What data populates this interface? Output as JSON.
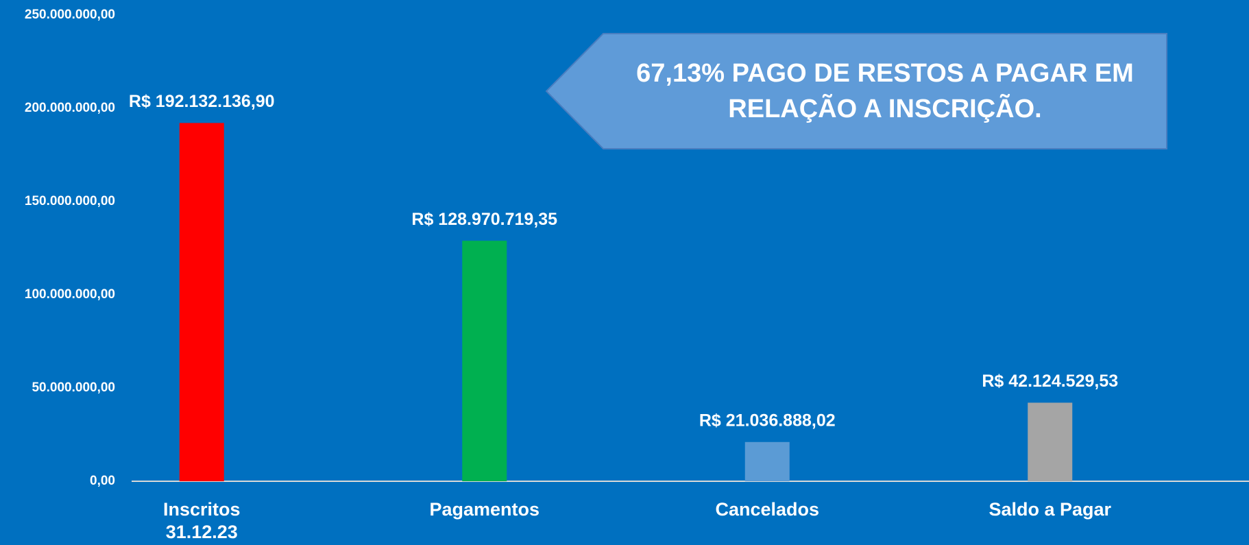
{
  "chart_data": {
    "type": "bar",
    "categories": [
      "Inscritos\n31.12.23",
      "Pagamentos",
      "Cancelados",
      "Saldo a Pagar"
    ],
    "values": [
      192132136.9,
      128970719.35,
      21036888.02,
      42124529.53
    ],
    "value_labels": [
      "R$ 192.132.136,90",
      "R$ 128.970.719,35",
      "R$ 21.036.888,02",
      "R$ 42.124.529,53"
    ],
    "colors": [
      "#ff0000",
      "#00b050",
      "#5b9bd5",
      "#a5a5a5"
    ],
    "ylim": [
      0,
      250000000
    ],
    "yticks": [
      {
        "value": 0,
        "label": "0,00"
      },
      {
        "value": 50000000,
        "label": "50.000.000,00"
      },
      {
        "value": 100000000,
        "label": "100.000.000,00"
      },
      {
        "value": 150000000,
        "label": "150.000.000,00"
      },
      {
        "value": 200000000,
        "label": "200.000.000,00"
      },
      {
        "value": 250000000,
        "label": "250.000.000,00"
      }
    ],
    "grid": false,
    "annotation": "67,13% PAGO DE RESTOS A PAGAR EM\nRELAÇÃO A INSCRIÇÃO."
  }
}
